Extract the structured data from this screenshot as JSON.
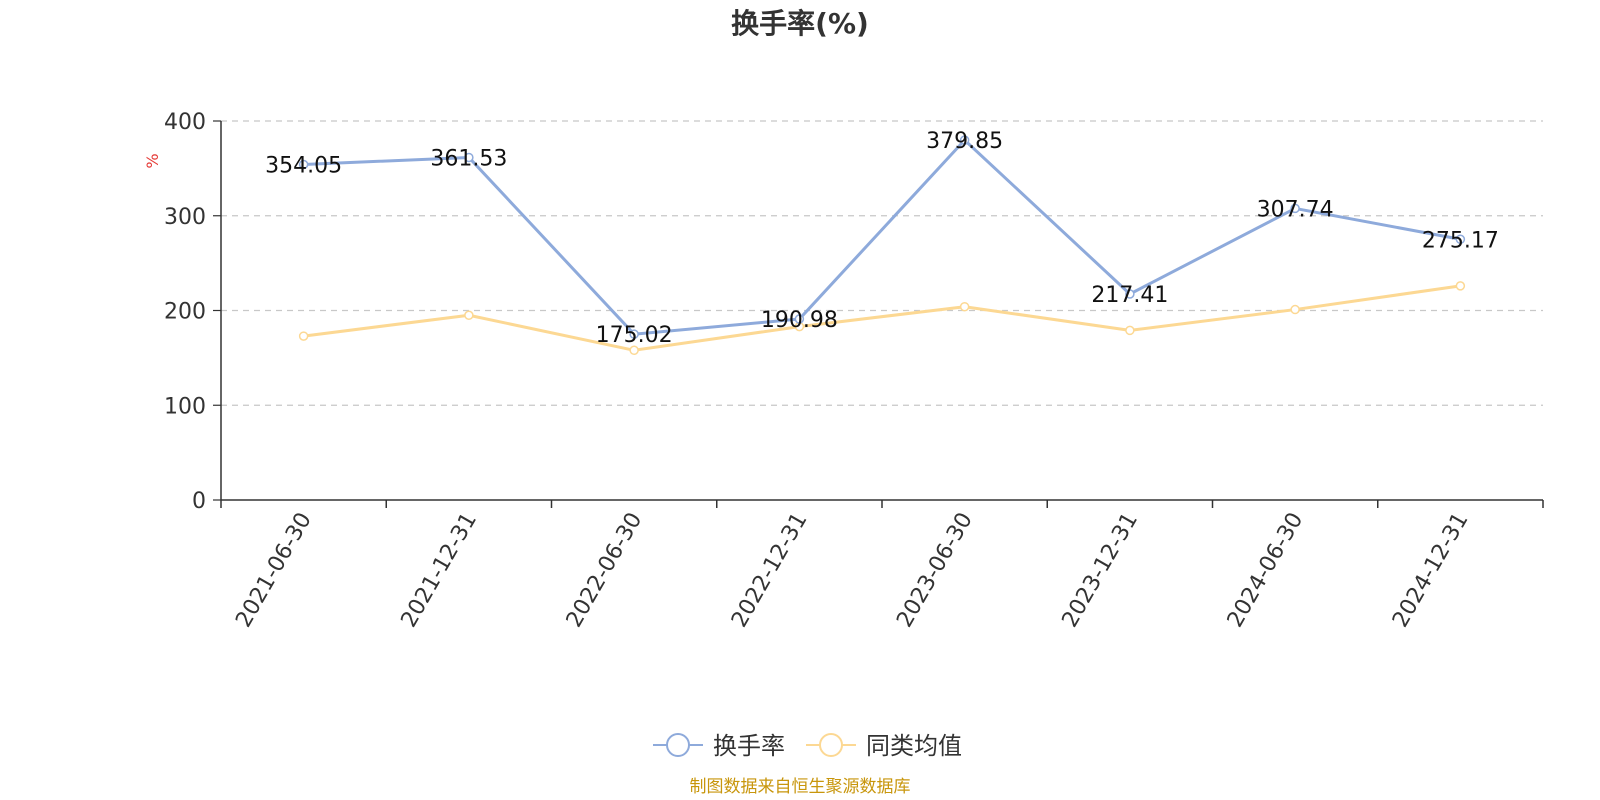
{
  "chart_data": {
    "type": "line",
    "title": "换手率(%)",
    "ylabel": "%",
    "ylim": [
      0,
      400
    ],
    "yticks": [
      0,
      100,
      200,
      300,
      400
    ],
    "grid": true,
    "categories": [
      "2021-06-30",
      "2021-12-31",
      "2022-06-30",
      "2022-12-31",
      "2023-06-30",
      "2023-12-31",
      "2024-06-30",
      "2024-12-31"
    ],
    "series": [
      {
        "name": "换手率",
        "color": "#8eaadb",
        "values": [
          354.05,
          361.53,
          175.02,
          190.98,
          379.85,
          217.41,
          307.74,
          275.17
        ],
        "labels": [
          "354.05",
          "361.53",
          "175.02",
          "190.98",
          "379.85",
          "217.41",
          "307.74",
          "275.17"
        ]
      },
      {
        "name": "同类均值",
        "color": "#fcd893",
        "values": [
          173,
          195,
          158,
          183,
          204,
          179,
          201,
          226
        ]
      }
    ],
    "legend_position": "bottom-center",
    "source": "制图数据来自恒生聚源数据库",
    "source_color": "#c8960c",
    "unit_color": "#e53935"
  }
}
